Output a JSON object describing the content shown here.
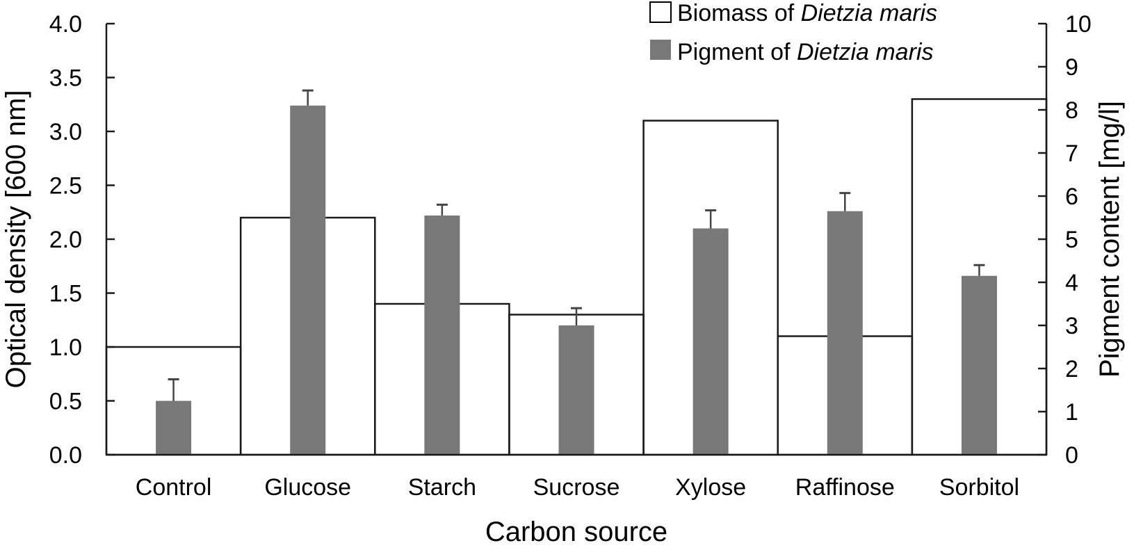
{
  "chart_data": {
    "type": "bar",
    "title": "",
    "xlabel": "Carbon source",
    "ylabel": "Optical density [600 nm]",
    "y2label": "Pigment content [mg/l]",
    "categories": [
      "Control",
      "Glucose",
      "Starch",
      "Sucrose",
      "Xylose",
      "Raffinose",
      "Sorbitol"
    ],
    "ylim": [
      0,
      4.0
    ],
    "y2lim": [
      0,
      10
    ],
    "yticks": [
      "0.0",
      "0.5",
      "1.0",
      "1.5",
      "2.0",
      "2.5",
      "3.0",
      "3.5",
      "4.0"
    ],
    "y2ticks": [
      "0",
      "1",
      "2",
      "3",
      "4",
      "5",
      "6",
      "7",
      "8",
      "9",
      "10"
    ],
    "grid": false,
    "legend_position": "top-right",
    "series": [
      {
        "name": "Biomass of Dietzia maris",
        "name_plain": "Biomass of ",
        "name_italic": "Dietzia maris",
        "axis": "left",
        "style": "open-box",
        "values": [
          1.0,
          2.2,
          1.4,
          1.3,
          3.1,
          1.1,
          3.3
        ]
      },
      {
        "name": "Pigment of Dietzia maris",
        "name_plain": "Pigment of ",
        "name_italic": "Dietzia maris",
        "axis": "right",
        "style": "filled",
        "color": "#787878",
        "values": [
          1.25,
          8.1,
          5.55,
          3.0,
          5.25,
          5.65,
          4.15
        ],
        "error": [
          0.5,
          0.35,
          0.25,
          0.4,
          0.42,
          0.42,
          0.25
        ]
      }
    ]
  }
}
